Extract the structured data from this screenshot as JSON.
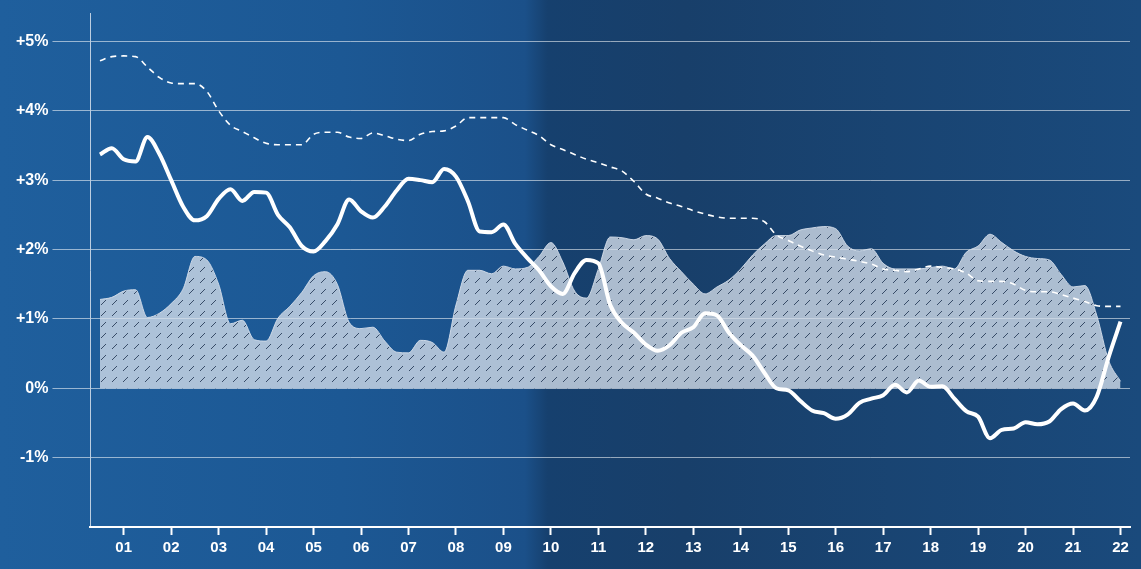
{
  "chart_data": {
    "type": "line",
    "x": [
      2000.5,
      2000.75,
      2001,
      2001.25,
      2001.5,
      2001.75,
      2002,
      2002.25,
      2002.5,
      2002.75,
      2003,
      2003.25,
      2003.5,
      2003.75,
      2004,
      2004.25,
      2004.5,
      2004.75,
      2005,
      2005.25,
      2005.5,
      2005.75,
      2006,
      2006.25,
      2006.5,
      2006.75,
      2007,
      2007.25,
      2007.5,
      2007.75,
      2008,
      2008.25,
      2008.5,
      2008.75,
      2009,
      2009.25,
      2009.5,
      2009.75,
      2010,
      2010.25,
      2010.5,
      2010.75,
      2011,
      2011.25,
      2011.5,
      2011.75,
      2012,
      2012.25,
      2012.5,
      2012.75,
      2013,
      2013.25,
      2013.5,
      2013.75,
      2014,
      2014.25,
      2014.5,
      2014.75,
      2015,
      2015.25,
      2015.5,
      2015.75,
      2016,
      2016.25,
      2016.5,
      2016.75,
      2017,
      2017.25,
      2017.5,
      2017.75,
      2018,
      2018.25,
      2018.5,
      2018.75,
      2019,
      2019.25,
      2019.5,
      2019.75,
      2020,
      2020.25,
      2020.5,
      2020.75,
      2021,
      2021.25,
      2021.5,
      2021.75,
      2022
    ],
    "xlim": [
      2000.3,
      2022.2
    ],
    "xticks": [
      {
        "value": 2001,
        "label": "01"
      },
      {
        "value": 2002,
        "label": "02"
      },
      {
        "value": 2003,
        "label": "03"
      },
      {
        "value": 2004,
        "label": "04"
      },
      {
        "value": 2005,
        "label": "05"
      },
      {
        "value": 2006,
        "label": "06"
      },
      {
        "value": 2007,
        "label": "07"
      },
      {
        "value": 2008,
        "label": "08"
      },
      {
        "value": 2009,
        "label": "09"
      },
      {
        "value": 2010,
        "label": "10"
      },
      {
        "value": 2011,
        "label": "11"
      },
      {
        "value": 2012,
        "label": "12"
      },
      {
        "value": 2013,
        "label": "13"
      },
      {
        "value": 2014,
        "label": "14"
      },
      {
        "value": 2015,
        "label": "15"
      },
      {
        "value": 2016,
        "label": "16"
      },
      {
        "value": 2017,
        "label": "17"
      },
      {
        "value": 2018,
        "label": "18"
      },
      {
        "value": 2019,
        "label": "19"
      },
      {
        "value": 2020,
        "label": "20"
      },
      {
        "value": 2021,
        "label": "21"
      },
      {
        "value": 2022,
        "label": "22"
      }
    ],
    "ylim": [
      -2,
      5.4
    ],
    "yticks": [
      {
        "value": -1,
        "label": "-1%"
      },
      {
        "value": 0,
        "label": "0%"
      },
      {
        "value": 1,
        "label": "+1%"
      },
      {
        "value": 2,
        "label": "+2%"
      },
      {
        "value": 3,
        "label": "+3%"
      },
      {
        "value": 4,
        "label": "+4%"
      },
      {
        "value": 5,
        "label": "+5%"
      }
    ],
    "grid": true,
    "series": [
      {
        "type": "area",
        "color": "#d6dfeb",
        "values": [
          1.28,
          1.31,
          1.4,
          1.42,
          1.02,
          1.08,
          1.22,
          1.43,
          1.9,
          1.85,
          1.5,
          0.93,
          0.98,
          0.7,
          0.68,
          1.01,
          1.18,
          1.38,
          1.62,
          1.68,
          1.5,
          0.95,
          0.86,
          0.88,
          0.68,
          0.52,
          0.51,
          0.69,
          0.66,
          0.52,
          1.2,
          1.7,
          1.7,
          1.65,
          1.76,
          1.72,
          1.74,
          1.9,
          2.1,
          1.82,
          1.4,
          1.3,
          1.72,
          2.18,
          2.17,
          2.14,
          2.2,
          2.15,
          1.87,
          1.68,
          1.5,
          1.36,
          1.46,
          1.56,
          1.72,
          1.92,
          2.08,
          2.2,
          2.2,
          2.28,
          2.31,
          2.33,
          2.3,
          2.05,
          1.98,
          2.01,
          1.8,
          1.72,
          1.72,
          1.72,
          1.74,
          1.76,
          1.72,
          1.96,
          2.05,
          2.22,
          2.1,
          1.98,
          1.9,
          1.87,
          1.85,
          1.64,
          1.46,
          1.48,
          1.05,
          0.4,
          0.1
        ]
      },
      {
        "type": "line",
        "line_style": "dashed",
        "color": "#ffffff",
        "values": [
          4.72,
          4.78,
          4.79,
          4.78,
          4.63,
          4.48,
          4.4,
          4.39,
          4.39,
          4.28,
          4.0,
          3.79,
          3.7,
          3.61,
          3.53,
          3.51,
          3.51,
          3.51,
          3.66,
          3.69,
          3.69,
          3.62,
          3.6,
          3.68,
          3.64,
          3.59,
          3.57,
          3.66,
          3.7,
          3.71,
          3.78,
          3.9,
          3.9,
          3.9,
          3.9,
          3.8,
          3.72,
          3.64,
          3.51,
          3.44,
          3.37,
          3.3,
          3.25,
          3.19,
          3.13,
          2.98,
          2.8,
          2.74,
          2.67,
          2.62,
          2.56,
          2.51,
          2.47,
          2.45,
          2.45,
          2.45,
          2.4,
          2.21,
          2.13,
          2.05,
          1.98,
          1.92,
          1.89,
          1.86,
          1.83,
          1.79,
          1.72,
          1.7,
          1.68,
          1.72,
          1.76,
          1.74,
          1.72,
          1.66,
          1.55,
          1.54,
          1.54,
          1.5,
          1.41,
          1.39,
          1.39,
          1.35,
          1.3,
          1.25,
          1.19,
          1.18,
          1.18
        ]
      },
      {
        "type": "line",
        "line_style": "solid",
        "color": "#ffffff",
        "values": [
          3.37,
          3.46,
          3.3,
          3.27,
          3.62,
          3.38,
          3.0,
          2.62,
          2.42,
          2.48,
          2.73,
          2.87,
          2.7,
          2.83,
          2.82,
          2.5,
          2.32,
          2.05,
          1.97,
          2.12,
          2.36,
          2.72,
          2.55,
          2.46,
          2.62,
          2.85,
          3.02,
          3.0,
          2.97,
          3.16,
          3.05,
          2.7,
          2.26,
          2.25,
          2.36,
          2.08,
          1.88,
          1.7,
          1.47,
          1.36,
          1.66,
          1.85,
          1.8,
          1.2,
          0.94,
          0.8,
          0.63,
          0.54,
          0.62,
          0.8,
          0.88,
          1.08,
          1.05,
          0.8,
          0.62,
          0.47,
          0.22,
          0.0,
          -0.03,
          -0.18,
          -0.32,
          -0.36,
          -0.44,
          -0.38,
          -0.21,
          -0.15,
          -0.1,
          0.05,
          -0.06,
          0.11,
          0.02,
          0.03,
          -0.15,
          -0.33,
          -0.41,
          -0.72,
          -0.6,
          -0.58,
          -0.49,
          -0.52,
          -0.48,
          -0.3,
          -0.22,
          -0.32,
          -0.12,
          0.45,
          0.96
        ]
      }
    ]
  }
}
